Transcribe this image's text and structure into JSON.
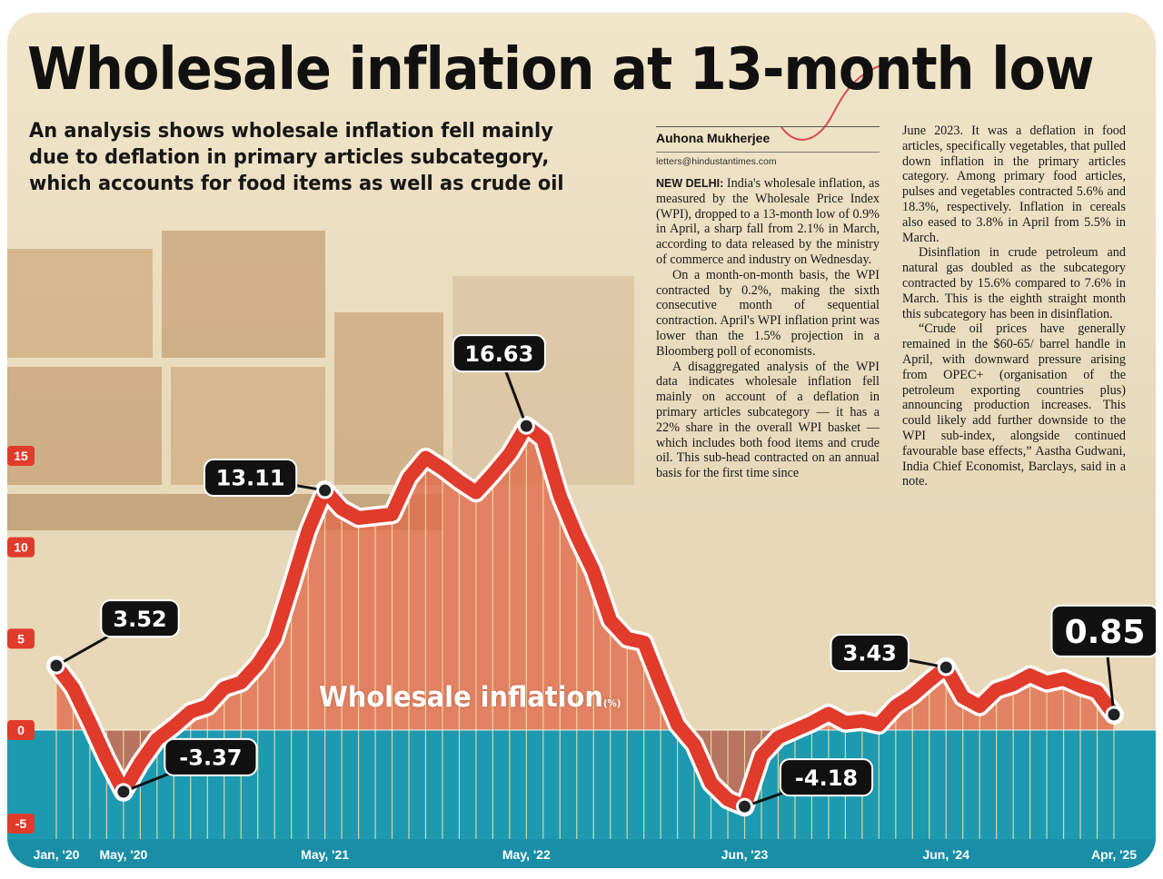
{
  "headline": "Wholesale inflation at 13-month low",
  "subheadline": "An analysis shows wholesale inflation fell mainly due to deflation in primary articles subcategory, which accounts for food items as well as crude oil",
  "byline": {
    "author": "Auhona Mukherjee",
    "email": "letters@hindustantimes.com"
  },
  "article": {
    "dateline": "NEW DELHI:",
    "col1": [
      " India's wholesale inflation, as measured by the Wholesale Price Index (WPI), dropped to a 13-month low of 0.9% in April, a sharp fall from 2.1% in March, according to data released by the ministry of commerce and industry on Wednesday.",
      "On a month-on-month basis, the WPI contracted by 0.2%, making the sixth consecutive month of sequential contraction. April's WPI inflation print was lower than the 1.5% projection in a Bloomberg poll of economists.",
      "A disaggregated analysis of the WPI data indicates wholesale inflation fell mainly on account of a deflation in primary articles subcategory — it has a 22% share in the overall WPI basket — which includes both food items and crude oil. This sub-head contracted on an annual basis for the first time since"
    ],
    "col2": [
      "June 2023. It was a deflation in food articles, specifically vegetables, that pulled down inflation in the primary articles category. Among primary food articles, pulses and vegetables contracted 5.6% and 18.3%, respectively. Inflation in cereals also eased to 3.8% in April from 5.5% in March.",
      "Disinflation in crude petroleum and natural gas doubled as the subcategory contracted by 15.6% compared to 7.6% in March. This is the eighth straight month this subcategory has been in disinflation.",
      "“Crude oil prices have generally remained in the $60-65/ barrel handle in April, with downward pressure arising from OPEC+ (organisation of the petroleum exporting countries plus) announcing production increases. This could likely add further downside to the WPI sub-index, alongside continued favourable base effects,” Aastha Gudwani, India Chief Economist, Barclays, said in a note."
    ]
  },
  "chart_data": {
    "type": "line",
    "series_label": "Wholesale inflation",
    "unit": "(%)",
    "ylim": [
      -5,
      15
    ],
    "yticks": [
      15,
      10,
      5,
      0,
      -5
    ],
    "x_tick_labels": [
      {
        "index": 0,
        "label": "Jan, '20"
      },
      {
        "index": 4,
        "label": "May, '20"
      },
      {
        "index": 16,
        "label": "May, '21"
      },
      {
        "index": 28,
        "label": "May, '22"
      },
      {
        "index": 41,
        "label": "Jun, '23"
      },
      {
        "index": 53,
        "label": "Jun, '24"
      },
      {
        "index": 63,
        "label": "Apr, '25"
      }
    ],
    "values": [
      3.52,
      2.3,
      0.4,
      -1.6,
      -3.37,
      -1.8,
      -0.5,
      0.2,
      1.0,
      1.3,
      2.3,
      2.6,
      3.6,
      5.0,
      7.9,
      10.9,
      13.11,
      12.1,
      11.6,
      11.7,
      11.8,
      13.8,
      14.9,
      14.3,
      13.6,
      13.0,
      14.0,
      15.1,
      16.63,
      15.9,
      12.8,
      10.6,
      8.7,
      6.0,
      5.0,
      4.8,
      2.5,
      0.3,
      -0.8,
      -2.9,
      -3.8,
      -4.18,
      -1.4,
      -0.4,
      0.0,
      0.4,
      0.9,
      0.4,
      0.5,
      0.3,
      1.3,
      1.9,
      2.7,
      3.43,
      1.8,
      1.3,
      2.2,
      2.5,
      3.0,
      2.6,
      2.8,
      2.4,
      2.1,
      0.85
    ],
    "callouts": [
      {
        "index": 0,
        "label": "3.52"
      },
      {
        "index": 4,
        "label": "-3.37"
      },
      {
        "index": 16,
        "label": "13.11"
      },
      {
        "index": 28,
        "label": "16.63"
      },
      {
        "index": 41,
        "label": "-4.18"
      },
      {
        "index": 53,
        "label": "3.43"
      },
      {
        "index": 63,
        "label": "0.85"
      }
    ],
    "colors": {
      "line": "#e13b2c",
      "positive_fill": "#e2694a",
      "negative_fill": "#1d9ab0",
      "axis_band": "#1a8ea6",
      "callout_bg": "#111111"
    }
  }
}
